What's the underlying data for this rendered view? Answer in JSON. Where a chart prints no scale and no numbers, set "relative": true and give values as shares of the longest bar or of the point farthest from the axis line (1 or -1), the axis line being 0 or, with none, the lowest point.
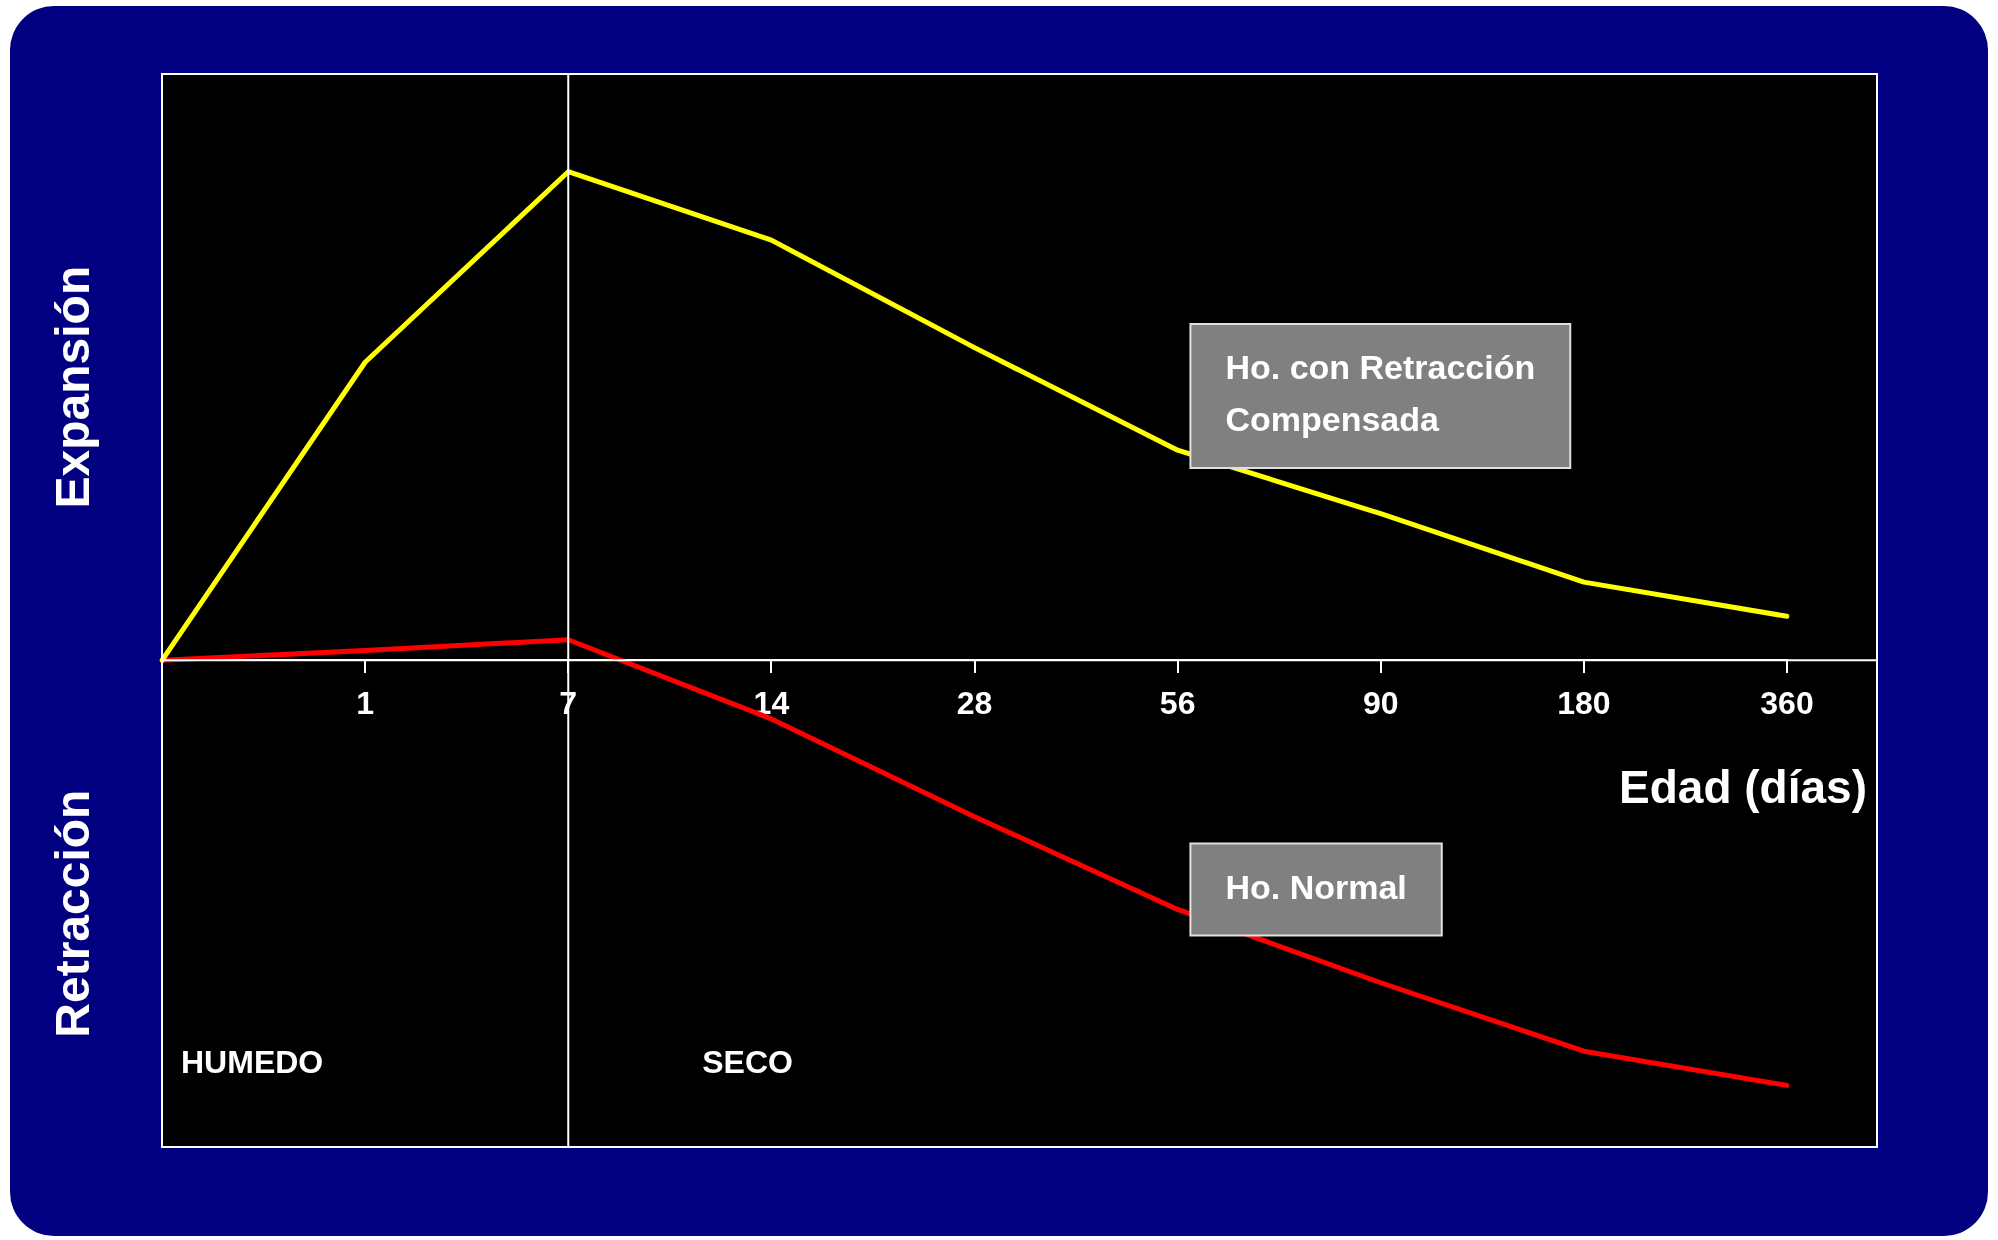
{
  "chart_data": {
    "type": "line",
    "relative": true,
    "xlabel": "Edad (días)",
    "annotations": [
      "Expansión",
      "Retracción",
      "HUMEDO",
      "SECO"
    ],
    "categories": [
      null,
      "1",
      "7",
      "14",
      "28",
      "56",
      "90",
      "180",
      "360"
    ],
    "series": [
      {
        "name": "Ho. con Retracción Compensada",
        "color": "#ffff00",
        "values": [
          0,
          0.61,
          1,
          0.86,
          0.64,
          0.43,
          0.3,
          0.16,
          0.09
        ]
      },
      {
        "name": "Ho. Normal",
        "color": "#ff0000",
        "values": [
          0,
          0.02,
          0.042,
          -0.12,
          -0.32,
          -0.51,
          -0.66,
          -0.8,
          -0.87
        ]
      }
    ],
    "ref_lines": [
      {
        "axis": "x",
        "value": "7",
        "color": "#ffffff"
      }
    ],
    "marker": "none",
    "line_style": "solid",
    "legend": false,
    "grid": false
  }
}
